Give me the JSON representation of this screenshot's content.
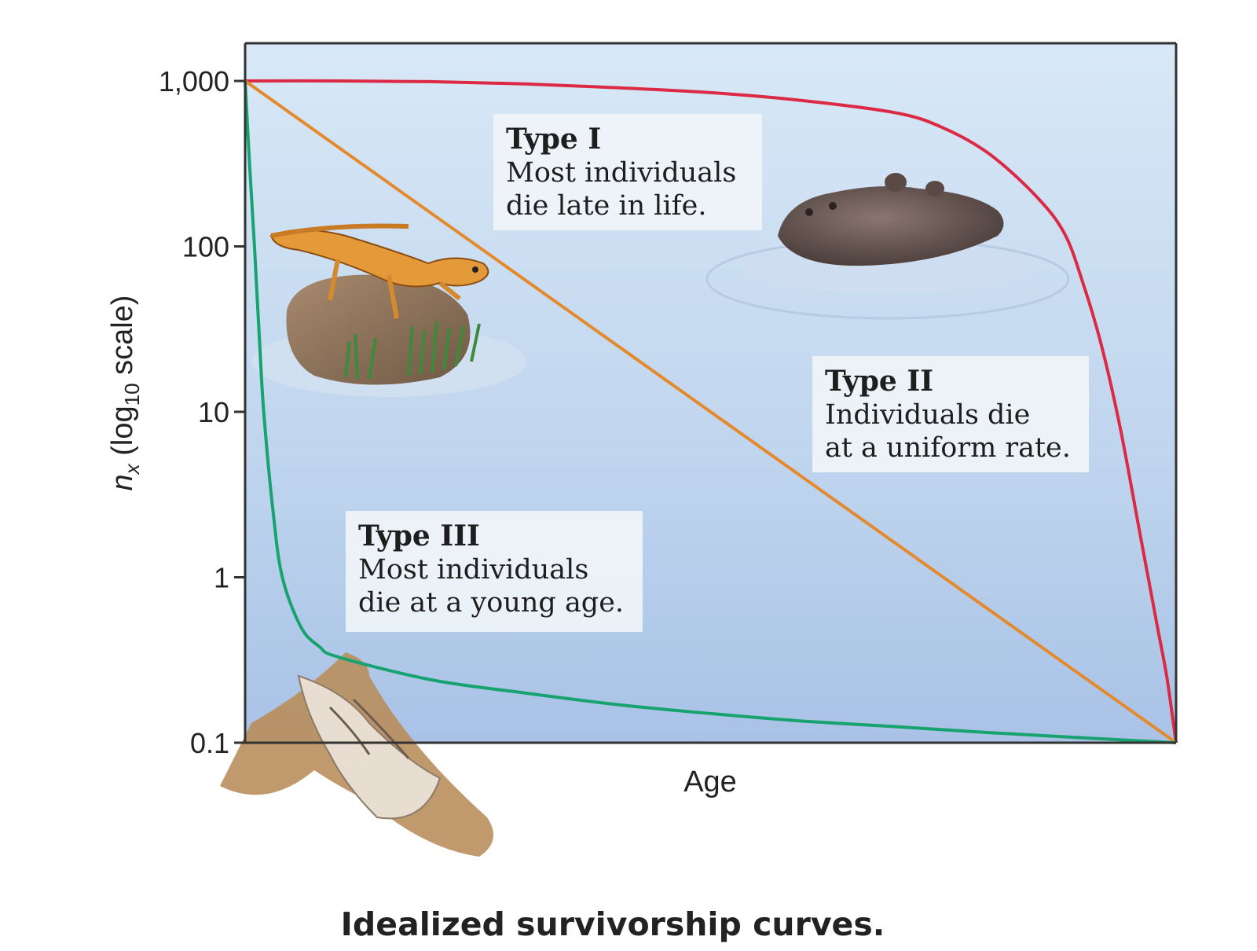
{
  "chart_data": {
    "type": "line",
    "title": "",
    "caption": "Idealized survivorship curves.",
    "xlabel": "Age",
    "ylabel": {
      "n": "n",
      "sub": "x",
      "pre": " (log",
      "base": "10",
      "post": " scale)"
    },
    "yscale": "log",
    "ylim": [
      0.1,
      1000
    ],
    "xlim": [
      0,
      1
    ],
    "yticks": [
      {
        "value": 1000,
        "label": "1,000"
      },
      {
        "value": 100,
        "label": "100"
      },
      {
        "value": 10,
        "label": "10"
      },
      {
        "value": 1,
        "label": "1"
      },
      {
        "value": 0.1,
        "label": "0.1"
      }
    ],
    "grid": false,
    "series": [
      {
        "color": "#dc2a45",
        "x": [
          0,
          0.1,
          0.2,
          0.3,
          0.4,
          0.5,
          0.6,
          0.7,
          0.75,
          0.8,
          0.85,
          0.88,
          0.9,
          0.92,
          0.94,
          0.96,
          0.98,
          0.99,
          1.0
        ],
        "y": [
          1000,
          1000,
          990,
          960,
          910,
          850,
          760,
          640,
          520,
          360,
          200,
          120,
          60,
          25,
          8,
          2,
          0.5,
          0.25,
          0.1
        ]
      },
      {
        "color": "#e58a2c",
        "x": [
          0,
          1
        ],
        "y": [
          1000,
          0.1
        ]
      },
      {
        "color": "#17a36f",
        "x": [
          0,
          0.005,
          0.01,
          0.015,
          0.02,
          0.03,
          0.04,
          0.06,
          0.08,
          0.1,
          0.2,
          0.3,
          0.4,
          0.5,
          0.6,
          0.7,
          0.8,
          0.9,
          1.0
        ],
        "y": [
          1000,
          300,
          100,
          30,
          10,
          2.5,
          1,
          0.5,
          0.38,
          0.33,
          0.24,
          0.2,
          0.17,
          0.15,
          0.135,
          0.125,
          0.115,
          0.107,
          0.1
        ]
      }
    ],
    "annotations": [
      {
        "title": "Type I",
        "lines": [
          "Most individuals",
          "die late in life."
        ]
      },
      {
        "title": "Type II",
        "lines": [
          "Individuals die",
          "at a uniform rate."
        ]
      },
      {
        "title": "Type III",
        "lines": [
          "Most individuals",
          "die at a young age."
        ]
      }
    ]
  }
}
